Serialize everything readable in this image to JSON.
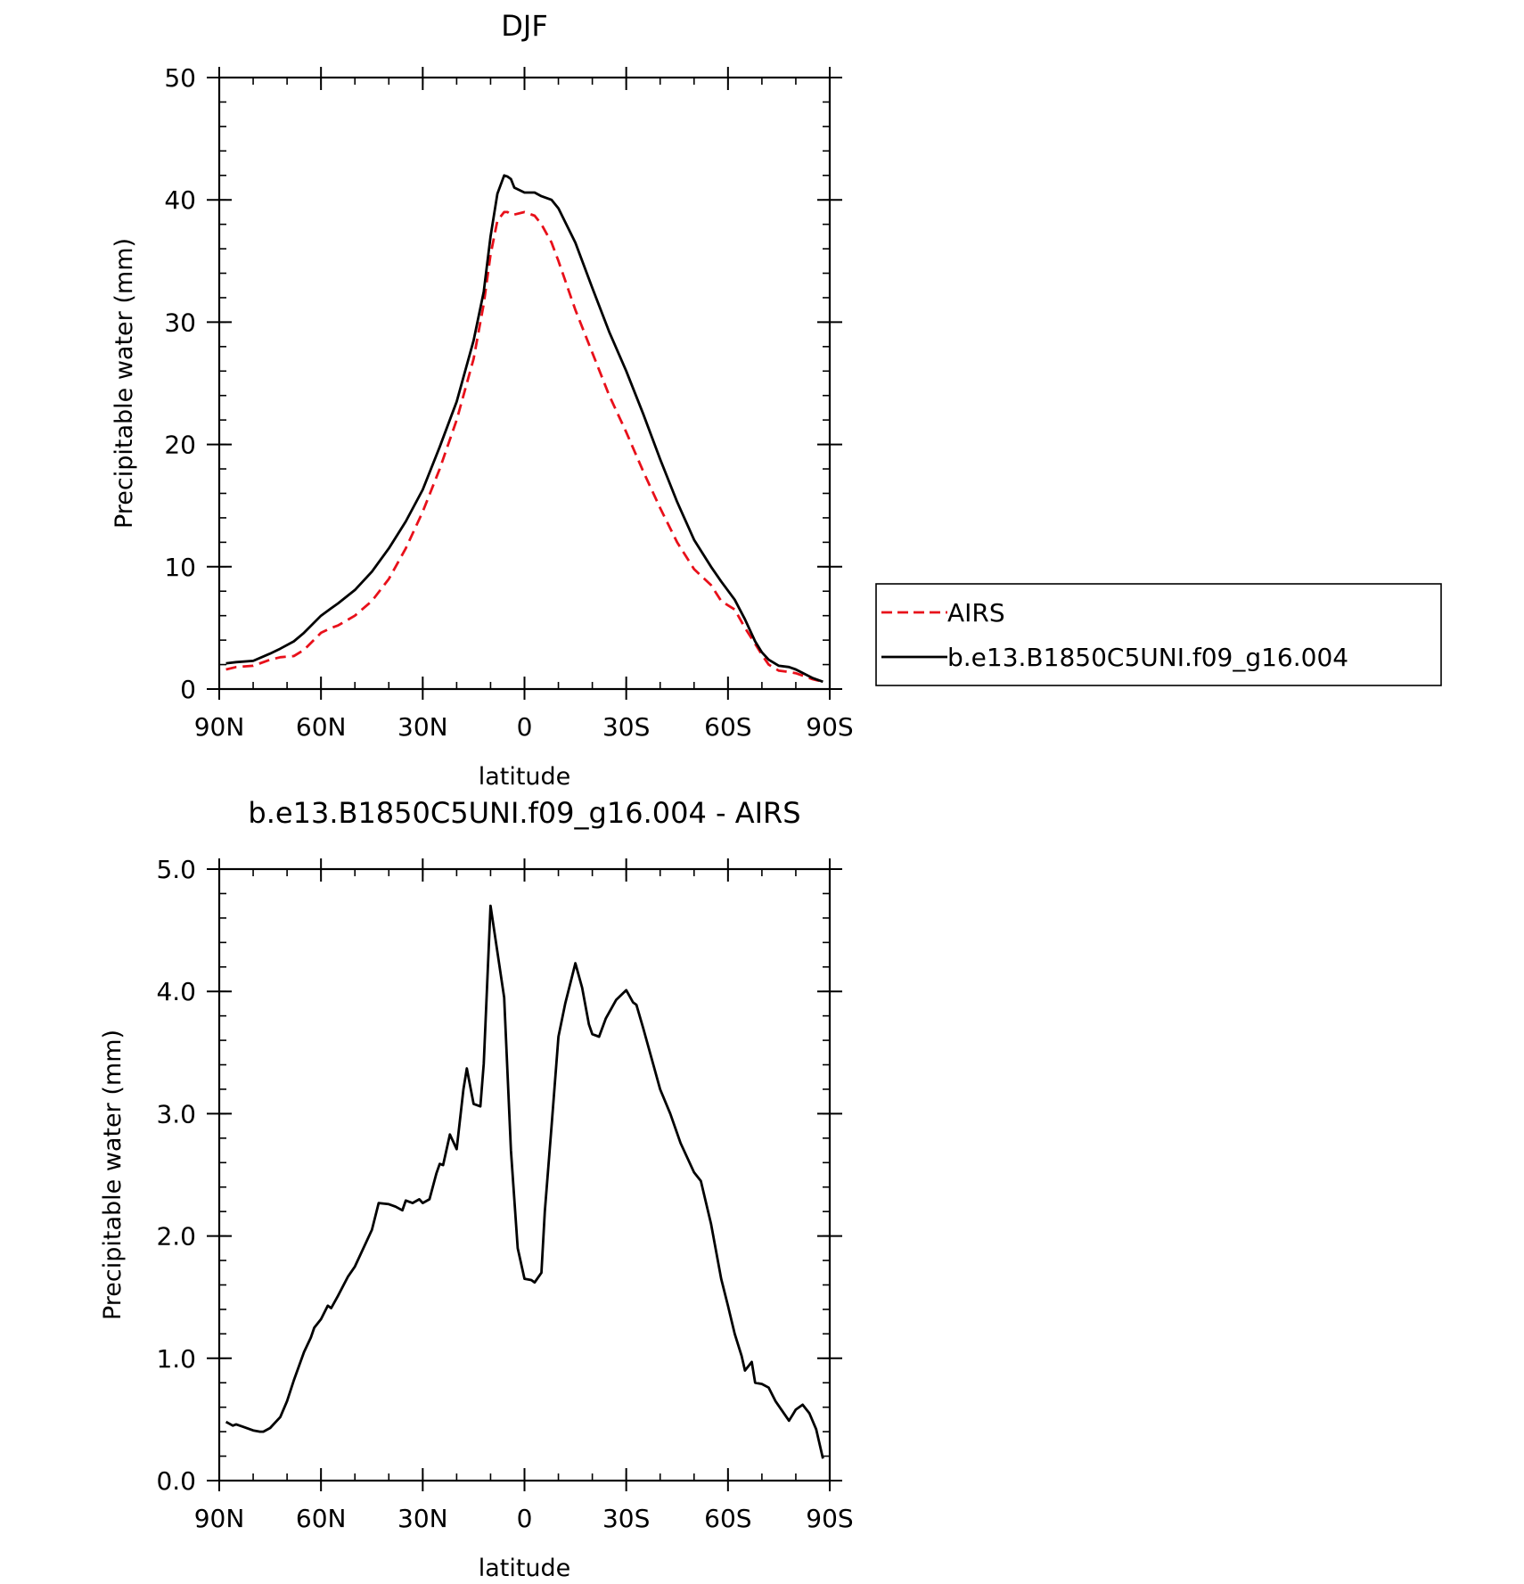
{
  "chart_data": [
    {
      "type": "line",
      "title": "DJF",
      "xlabel": "latitude",
      "ylabel": "Precipitable water (mm)",
      "xlim": [
        90,
        -90
      ],
      "ylim": [
        0,
        50
      ],
      "x_ticks": [
        90,
        60,
        30,
        0,
        -30,
        -60,
        -90
      ],
      "x_tick_labels": [
        "90N",
        "60N",
        "30N",
        "0",
        "30S",
        "60S",
        "90S"
      ],
      "y_ticks": [
        0,
        10,
        20,
        30,
        40,
        50
      ],
      "y_tick_labels": [
        "0",
        "10",
        "20",
        "30",
        "40",
        "50"
      ],
      "grid": false,
      "legend": "right",
      "series": [
        {
          "name": "AIRS",
          "color": "#e8101a",
          "dash": "dashed",
          "x": [
            88,
            85,
            80,
            75,
            72,
            68,
            65,
            60,
            57,
            55,
            50,
            45,
            40,
            35,
            30,
            25,
            20,
            15,
            12,
            10,
            8,
            6,
            5,
            4,
            3,
            0,
            -3,
            -5,
            -8,
            -10,
            -15,
            -20,
            -25,
            -30,
            -35,
            -40,
            -45,
            -50,
            -55,
            -58,
            -62,
            -65,
            -68,
            -70,
            -72,
            -75,
            -78,
            -80,
            -85,
            -88
          ],
          "y": [
            1.6,
            1.8,
            1.9,
            2.4,
            2.6,
            2.7,
            3.2,
            4.6,
            5.0,
            5.2,
            6.0,
            7.2,
            9.0,
            11.5,
            14.5,
            18.0,
            22.0,
            27.0,
            31.5,
            35.5,
            38.3,
            39.0,
            39.0,
            38.8,
            38.8,
            39.0,
            38.7,
            38.0,
            36.5,
            35.0,
            31.0,
            27.5,
            24.0,
            21.0,
            17.8,
            14.8,
            12.0,
            9.8,
            8.5,
            7.2,
            6.5,
            5.0,
            3.7,
            2.8,
            2.0,
            1.5,
            1.4,
            1.3,
            0.8,
            0.6
          ]
        },
        {
          "name": "b.e13.B1850C5UNI.f09_g16.004",
          "color": "#000000",
          "dash": "solid",
          "x": [
            88,
            85,
            80,
            75,
            72,
            68,
            65,
            60,
            57,
            55,
            50,
            45,
            40,
            35,
            30,
            25,
            20,
            15,
            12,
            10,
            8,
            6,
            5,
            4,
            3,
            0,
            -3,
            -5,
            -8,
            -10,
            -15,
            -20,
            -25,
            -30,
            -35,
            -40,
            -45,
            -50,
            -55,
            -58,
            -62,
            -65,
            -68,
            -70,
            -72,
            -75,
            -78,
            -80,
            -85,
            -88
          ],
          "y": [
            2.1,
            2.2,
            2.3,
            2.9,
            3.3,
            3.9,
            4.6,
            6.0,
            6.6,
            7.0,
            8.1,
            9.6,
            11.5,
            13.7,
            16.3,
            19.8,
            23.5,
            28.5,
            32.5,
            37.0,
            40.5,
            42.0,
            41.9,
            41.7,
            41.0,
            40.6,
            40.6,
            40.3,
            40.0,
            39.3,
            36.5,
            32.8,
            29.2,
            26.0,
            22.5,
            18.8,
            15.3,
            12.2,
            10.0,
            8.8,
            7.3,
            5.7,
            3.9,
            3.0,
            2.4,
            1.9,
            1.8,
            1.6,
            0.9,
            0.6
          ]
        }
      ]
    },
    {
      "type": "line",
      "title": "b.e13.B1850C5UNI.f09_g16.004 - AIRS",
      "xlabel": "latitude",
      "ylabel": "Precipitable water (mm)",
      "xlim": [
        90,
        -90
      ],
      "ylim": [
        0,
        5
      ],
      "x_ticks": [
        90,
        60,
        30,
        0,
        -30,
        -60,
        -90
      ],
      "x_tick_labels": [
        "90N",
        "60N",
        "30N",
        "0",
        "30S",
        "60S",
        "90S"
      ],
      "y_ticks": [
        0,
        1,
        2,
        3,
        4,
        5
      ],
      "y_tick_labels": [
        "0.0",
        "1.0",
        "2.0",
        "3.0",
        "4.0",
        "5.0"
      ],
      "grid": false,
      "series": [
        {
          "color": "#000000",
          "dash": "solid",
          "x": [
            88,
            86,
            85,
            83,
            80,
            78,
            77,
            75,
            72,
            70,
            68,
            65,
            63,
            62,
            60,
            58,
            57,
            55,
            52,
            50,
            45,
            43,
            40,
            38,
            36,
            35,
            33,
            31,
            30,
            28,
            26,
            25,
            24,
            22,
            20,
            18,
            17,
            15,
            13,
            12,
            10,
            6,
            4,
            2,
            0,
            -2,
            -3,
            -5,
            -6,
            -8,
            -10,
            -12,
            -15,
            -17,
            -19,
            -20,
            -22,
            -24,
            -27,
            -30,
            -32,
            -33,
            -35,
            -38,
            -40,
            -43,
            -46,
            -50,
            -52,
            -55,
            -58,
            -60,
            -62,
            -64,
            -65,
            -67,
            -68,
            -70,
            -72,
            -74,
            -76,
            -78,
            -80,
            -82,
            -84,
            -86,
            -88
          ],
          "y": [
            0.48,
            0.45,
            0.46,
            0.44,
            0.41,
            0.4,
            0.4,
            0.43,
            0.52,
            0.65,
            0.82,
            1.05,
            1.17,
            1.25,
            1.32,
            1.43,
            1.41,
            1.51,
            1.67,
            1.75,
            2.05,
            2.27,
            2.26,
            2.24,
            2.21,
            2.29,
            2.27,
            2.3,
            2.27,
            2.3,
            2.51,
            2.59,
            2.58,
            2.83,
            2.71,
            3.2,
            3.37,
            3.08,
            3.06,
            3.41,
            4.7,
            3.95,
            2.7,
            1.9,
            1.65,
            1.64,
            1.62,
            1.7,
            2.2,
            2.9,
            3.63,
            3.9,
            4.23,
            4.03,
            3.73,
            3.65,
            3.63,
            3.78,
            3.93,
            4.01,
            3.91,
            3.89,
            3.7,
            3.4,
            3.2,
            3.0,
            2.76,
            2.52,
            2.45,
            2.1,
            1.65,
            1.43,
            1.2,
            1.02,
            0.9,
            0.97,
            0.8,
            0.79,
            0.76,
            0.65,
            0.57,
            0.49,
            0.58,
            0.62,
            0.55,
            0.42,
            0.18
          ]
        }
      ]
    }
  ]
}
